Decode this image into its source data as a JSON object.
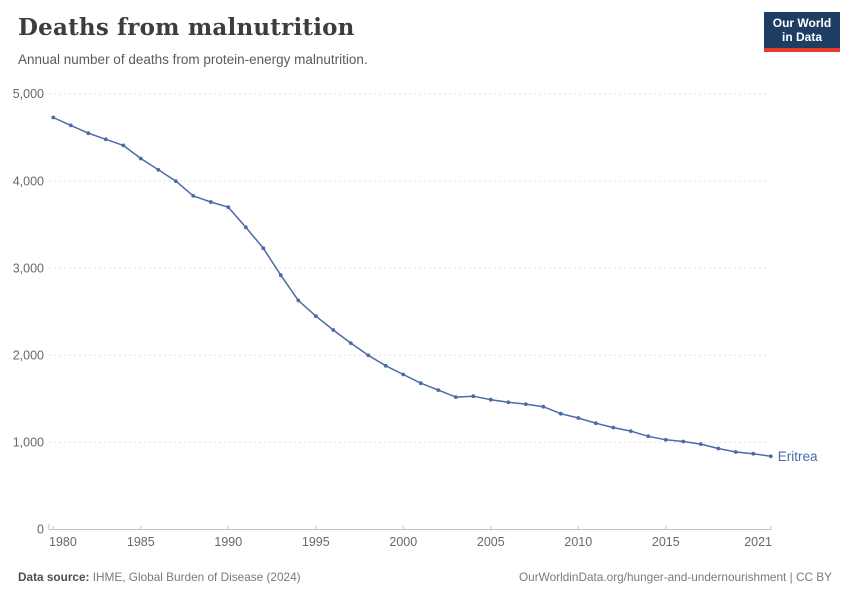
{
  "header": {
    "title": "Deaths from malnutrition",
    "subtitle": "Annual number of deaths from protein-energy malnutrition.",
    "logo": {
      "line1": "Our World",
      "line2": "in Data"
    }
  },
  "chart_data": {
    "type": "line",
    "title": "Deaths from malnutrition",
    "subtitle": "Annual number of deaths from protein-energy malnutrition.",
    "xlabel": "",
    "ylabel": "",
    "xlim": [
      1980,
      2021
    ],
    "ylim": [
      0,
      5000
    ],
    "grid": "horizontal-dashed",
    "legend_position": "end-of-line-label",
    "x_ticks": [
      1980,
      1985,
      1990,
      1995,
      2000,
      2005,
      2010,
      2015,
      2021
    ],
    "y_ticks": [
      0,
      1000,
      2000,
      3000,
      4000,
      5000
    ],
    "y_tick_labels": [
      "0",
      "1,000",
      "2,000",
      "3,000",
      "4,000",
      "5,000"
    ],
    "series": [
      {
        "name": "Eritrea",
        "color": "#4c6ba5",
        "x": [
          1980,
          1981,
          1982,
          1983,
          1984,
          1985,
          1986,
          1987,
          1988,
          1989,
          1990,
          1991,
          1992,
          1993,
          1994,
          1995,
          1996,
          1997,
          1998,
          1999,
          2000,
          2001,
          2002,
          2003,
          2004,
          2005,
          2006,
          2007,
          2008,
          2009,
          2010,
          2011,
          2012,
          2013,
          2014,
          2015,
          2016,
          2017,
          2018,
          2019,
          2020,
          2021
        ],
        "values": [
          4730,
          4640,
          4550,
          4480,
          4410,
          4260,
          4130,
          4000,
          3830,
          3760,
          3700,
          3470,
          3230,
          2920,
          2630,
          2450,
          2290,
          2140,
          2000,
          1880,
          1780,
          1680,
          1600,
          1520,
          1530,
          1490,
          1460,
          1440,
          1410,
          1330,
          1280,
          1220,
          1170,
          1130,
          1070,
          1030,
          1010,
          980,
          930,
          890,
          870,
          840
        ]
      }
    ]
  },
  "footer": {
    "data_source_label": "Data source:",
    "data_source_text": " IHME, Global Burden of Disease (2024)",
    "credit": "OurWorldinData.org/hunger-and-undernourishment | CC BY"
  },
  "colors": {
    "line": "#4c6ba5",
    "gridline": "#e2e2e2",
    "axis": "#c4c4c4",
    "tick_label": "#68686d",
    "logo_bg": "#1d3d63",
    "logo_accent": "#e6392f"
  }
}
